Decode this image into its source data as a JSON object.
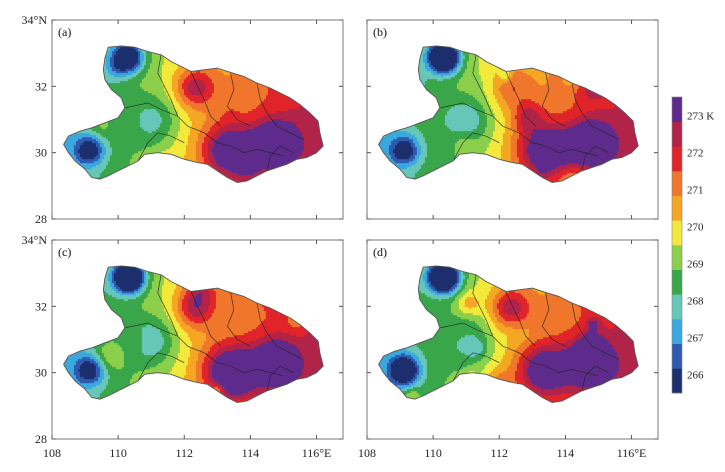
{
  "axes": {
    "lat_ticks": [
      "28",
      "30",
      "32",
      "34°N"
    ],
    "lon_ticks": [
      "108",
      "110",
      "112",
      "114",
      "116°E"
    ]
  },
  "panels": [
    {
      "tag": "(a)",
      "variant": 0
    },
    {
      "tag": "(b)",
      "variant": 1
    },
    {
      "tag": "(c)",
      "variant": 2
    },
    {
      "tag": "(d)",
      "variant": 3
    }
  ],
  "colorbar": {
    "unit": "K",
    "labels": [
      "266",
      "267",
      "268",
      "269",
      "270",
      "271",
      "272",
      "273 K"
    ],
    "colors": [
      "#1c2f6e",
      "#2e5bb0",
      "#3aa8df",
      "#66c7b8",
      "#3aa64a",
      "#8ccf4a",
      "#f2e93a",
      "#f5a623",
      "#f0762c",
      "#e0242a",
      "#b2234a",
      "#5e2b8c"
    ]
  },
  "chart_data": {
    "type": "heatmap",
    "title": "",
    "xlabel": "",
    "ylabel": "",
    "xlim": [
      108,
      116.8
    ],
    "ylim": [
      28,
      34
    ],
    "x_ticks": [
      "108",
      "110",
      "112",
      "114",
      "116°E"
    ],
    "y_ticks": [
      "28",
      "30",
      "32",
      "34°N"
    ],
    "value_unit": "K",
    "value_range": [
      266,
      273
    ],
    "panels": [
      "(a)",
      "(b)",
      "(c)",
      "(d)"
    ]
  }
}
